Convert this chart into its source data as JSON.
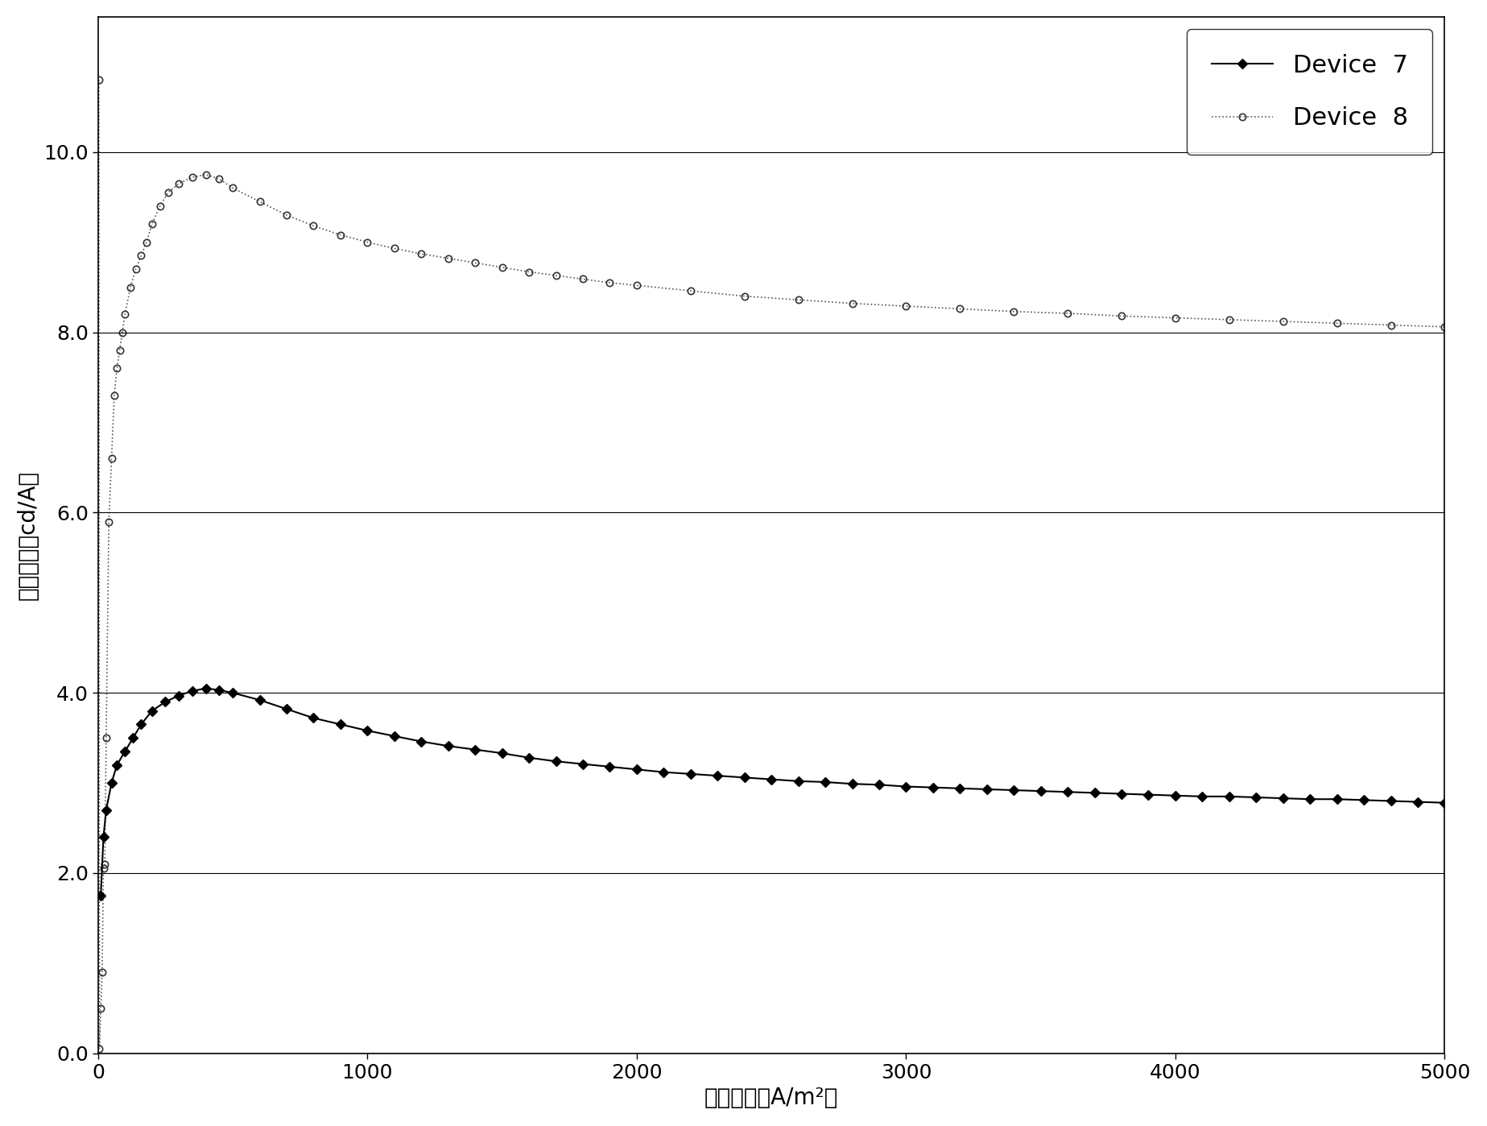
{
  "title": "",
  "xlabel": "电流密度（A/m²）",
  "ylabel": "电流效率（cd/A）",
  "xlim": [
    0,
    5000
  ],
  "ylim": [
    0.0,
    11.5
  ],
  "yticks": [
    0.0,
    2.0,
    4.0,
    6.0,
    8.0,
    10.0
  ],
  "xticks": [
    0,
    1000,
    2000,
    3000,
    4000,
    5000
  ],
  "legend_labels": [
    "Device  7",
    "Device  8"
  ],
  "background_color": "#ffffff",
  "device7": {
    "color": "#000000",
    "marker": "D",
    "markersize": 6,
    "linestyle": "-",
    "linewidth": 1.5,
    "x": [
      10,
      20,
      30,
      50,
      70,
      100,
      130,
      160,
      200,
      250,
      300,
      350,
      400,
      450,
      500,
      600,
      700,
      800,
      900,
      1000,
      1100,
      1200,
      1300,
      1400,
      1500,
      1600,
      1700,
      1800,
      1900,
      2000,
      2100,
      2200,
      2300,
      2400,
      2500,
      2600,
      2700,
      2800,
      2900,
      3000,
      3100,
      3200,
      3300,
      3400,
      3500,
      3600,
      3700,
      3800,
      3900,
      4000,
      4100,
      4200,
      4300,
      4400,
      4500,
      4600,
      4700,
      4800,
      4900,
      5000
    ],
    "y": [
      1.75,
      2.4,
      2.7,
      3.0,
      3.2,
      3.35,
      3.5,
      3.65,
      3.8,
      3.9,
      3.97,
      4.02,
      4.05,
      4.03,
      4.0,
      3.92,
      3.82,
      3.72,
      3.65,
      3.58,
      3.52,
      3.46,
      3.41,
      3.37,
      3.33,
      3.28,
      3.24,
      3.21,
      3.18,
      3.15,
      3.12,
      3.1,
      3.08,
      3.06,
      3.04,
      3.02,
      3.01,
      2.99,
      2.98,
      2.96,
      2.95,
      2.94,
      2.93,
      2.92,
      2.91,
      2.9,
      2.89,
      2.88,
      2.87,
      2.86,
      2.85,
      2.85,
      2.84,
      2.83,
      2.82,
      2.82,
      2.81,
      2.8,
      2.79,
      2.78
    ]
  },
  "device8": {
    "color": "#555555",
    "marker": "o",
    "markersize": 6,
    "linestyle": ":",
    "linewidth": 1.2,
    "x": [
      3,
      5,
      10,
      15,
      20,
      25,
      30,
      40,
      50,
      60,
      70,
      80,
      90,
      100,
      120,
      140,
      160,
      180,
      200,
      230,
      260,
      300,
      350,
      400,
      450,
      500,
      600,
      700,
      800,
      900,
      1000,
      1100,
      1200,
      1300,
      1400,
      1500,
      1600,
      1700,
      1800,
      1900,
      2000,
      2200,
      2400,
      2600,
      2800,
      3000,
      3200,
      3400,
      3600,
      3800,
      4000,
      4200,
      4400,
      4600,
      4800,
      5000
    ],
    "y": [
      10.8,
      0.05,
      0.5,
      0.9,
      2.05,
      2.1,
      3.5,
      5.9,
      6.6,
      7.3,
      7.6,
      7.8,
      8.0,
      8.2,
      8.5,
      8.7,
      8.85,
      9.0,
      9.2,
      9.4,
      9.55,
      9.65,
      9.72,
      9.75,
      9.7,
      9.6,
      9.45,
      9.3,
      9.18,
      9.08,
      9.0,
      8.93,
      8.87,
      8.82,
      8.77,
      8.72,
      8.67,
      8.63,
      8.59,
      8.55,
      8.52,
      8.46,
      8.4,
      8.36,
      8.32,
      8.29,
      8.26,
      8.23,
      8.21,
      8.18,
      8.16,
      8.14,
      8.12,
      8.1,
      8.08,
      8.06
    ]
  },
  "ylabel_fontsize": 20,
  "xlabel_fontsize": 20,
  "tick_fontsize": 18,
  "legend_fontsize": 22
}
